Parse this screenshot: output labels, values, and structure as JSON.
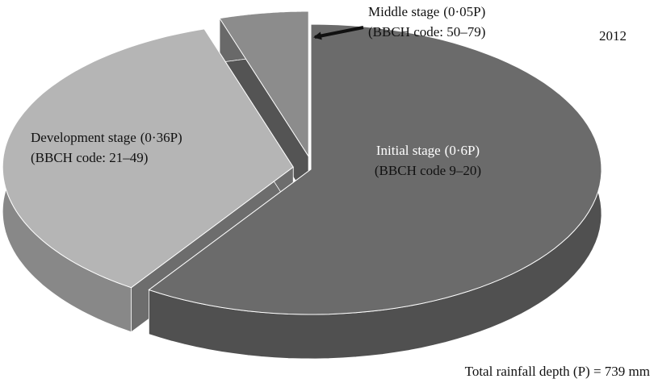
{
  "chart_data": {
    "type": "pie",
    "categories": [
      "Initial stage",
      "Development stage",
      "Middle stage"
    ],
    "value_labels": [
      "(0·6P)",
      "(0·36P)",
      "(0·05P)"
    ],
    "values": [
      0.6,
      0.36,
      0.05
    ],
    "codes": [
      "(BBCH code 9–20)",
      "(BBCH code: 21–49)",
      "(BBCH code: 50–79)"
    ],
    "colors": [
      "#6b6b6b",
      "#b5b5b5",
      "#8c8c8c"
    ],
    "year": "2012",
    "note": "Total rainfall depth (P) = 739 mm"
  }
}
